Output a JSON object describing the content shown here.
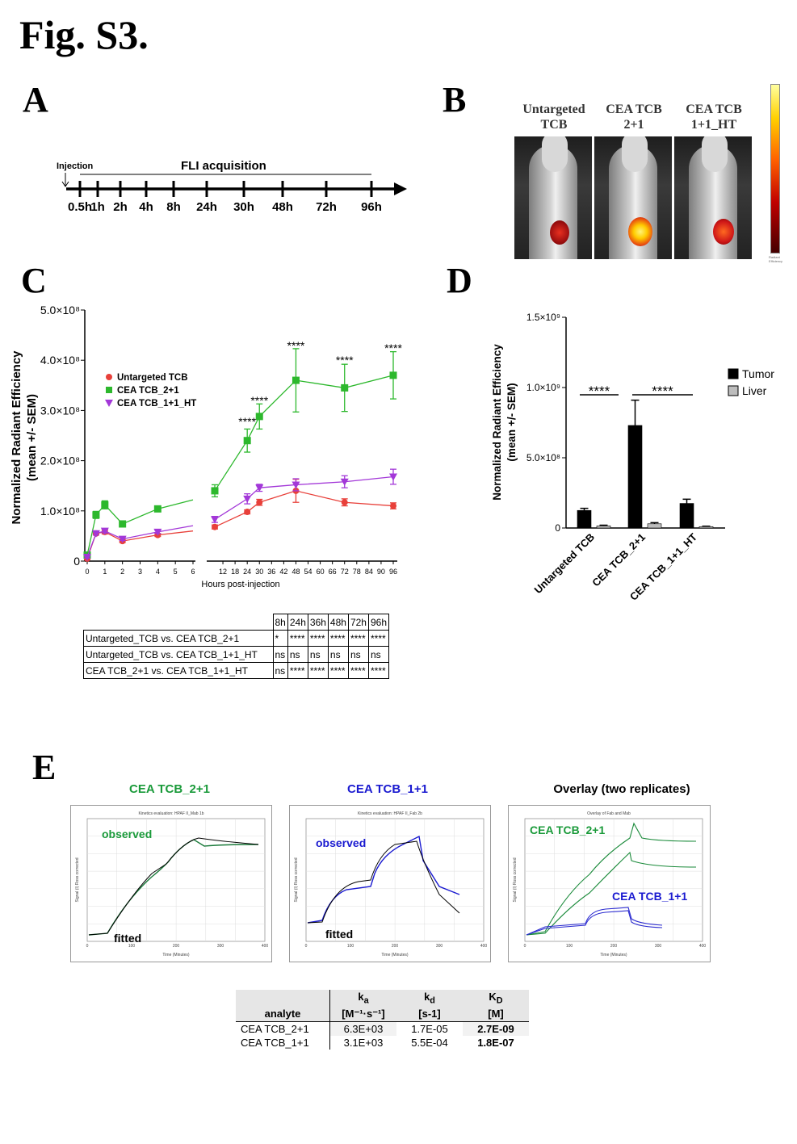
{
  "figure_title": "Fig. S3.",
  "panels": {
    "A": "A",
    "B": "B",
    "C": "C",
    "D": "D",
    "E": "E"
  },
  "panel_a": {
    "injection_label": "Injection",
    "acquisition_label": "FLI acquisition",
    "timepoints": [
      "0.5h",
      "1h",
      "2h",
      "4h",
      "8h",
      "24h",
      "30h",
      "48h",
      "72h",
      "96h"
    ]
  },
  "panel_b": {
    "mice": [
      {
        "label_line1": "Untargeted",
        "label_line2": "TCB"
      },
      {
        "label_line1": "CEA TCB",
        "label_line2": "2+1"
      },
      {
        "label_line1": "CEA TCB",
        "label_line2": "1+1_HT"
      }
    ],
    "colorbar_label": "Radiant Efficiency"
  },
  "chart_data": [
    {
      "type": "line",
      "panel": "C",
      "ylabel_line1": "Normalized Radiant Efficiency",
      "ylabel_line2": "(mean +/-  SEM)",
      "xlabel": "Hours post-injection",
      "y_ticks": [
        "0",
        "1.0×10⁸",
        "2.0×10⁸",
        "3.0×10⁸",
        "4.0×10⁸",
        "5.0×10⁸"
      ],
      "ylim": [
        0,
        500000000
      ],
      "x_ticks_left": [
        "0",
        "1",
        "2",
        "3",
        "4",
        "5",
        "6"
      ],
      "x_ticks_right": [
        "12",
        "18",
        "24",
        "30",
        "36",
        "42",
        "48",
        "54",
        "60",
        "66",
        "72",
        "78",
        "84",
        "90",
        "96"
      ],
      "series": [
        {
          "name": "Untargeted TCB",
          "color": "#e8403a",
          "marker": "circle",
          "x": [
            0,
            0.5,
            1,
            2,
            4,
            8,
            24,
            30,
            48,
            72,
            96
          ],
          "y": [
            5000000,
            55000000,
            58000000,
            40000000,
            52000000,
            68000000,
            98000000,
            117000000,
            140000000,
            117000000,
            110000000
          ],
          "err": [
            2000000,
            3000000,
            4000000,
            3000000,
            3000000,
            4000000,
            4000000,
            6000000,
            23000000,
            7000000,
            6000000
          ]
        },
        {
          "name": "CEA TCB_2+1",
          "color": "#2db82d",
          "marker": "square",
          "x": [
            0,
            0.5,
            1,
            2,
            4,
            8,
            24,
            30,
            48,
            72,
            96
          ],
          "y": [
            12000000,
            92000000,
            112000000,
            74000000,
            104000000,
            140000000,
            240000000,
            288000000,
            360000000,
            345000000,
            370000000
          ],
          "err": [
            3000000,
            7000000,
            8000000,
            4000000,
            5000000,
            12000000,
            23000000,
            25000000,
            63000000,
            47000000,
            47000000
          ]
        },
        {
          "name": "CEA TCB_1+1_HT",
          "color": "#a338d8",
          "marker": "triangle",
          "x": [
            0,
            0.5,
            1,
            2,
            4,
            8,
            24,
            30,
            48,
            72,
            96
          ],
          "y": [
            8000000,
            55000000,
            60000000,
            44000000,
            58000000,
            83000000,
            124000000,
            146000000,
            152000000,
            158000000,
            168000000
          ],
          "err": [
            2000000,
            3000000,
            4000000,
            3000000,
            3000000,
            6000000,
            10000000,
            7000000,
            12000000,
            12000000,
            15000000
          ]
        }
      ],
      "significance": [
        {
          "x": 24,
          "label": "****"
        },
        {
          "x": 30,
          "label": "****"
        },
        {
          "x": 48,
          "label": "****"
        },
        {
          "x": 72,
          "label": "****"
        },
        {
          "x": 96,
          "label": "****"
        }
      ]
    },
    {
      "type": "bar",
      "panel": "D",
      "ylabel_line1": "Normalized Radiant Efficiency",
      "ylabel_line2": "(mean +/-  SEM)",
      "y_ticks": [
        "0",
        "5.0×10⁸",
        "1.0×10⁹",
        "1.5×10⁹"
      ],
      "ylim": [
        0,
        1500000000
      ],
      "categories": [
        "Untargeted TCB",
        "CEA TCB_2+1",
        "CEA TCB_1+1_HT"
      ],
      "series": [
        {
          "name": "Tumor",
          "color": "#000000",
          "values": [
            125000000,
            730000000,
            175000000
          ],
          "err": [
            15000000,
            180000000,
            30000000
          ]
        },
        {
          "name": "Liver",
          "color": "#bdbdbd",
          "values": [
            15000000,
            30000000,
            10000000
          ],
          "err": [
            5000000,
            8000000,
            3000000
          ]
        }
      ],
      "significance": [
        {
          "label": "****"
        },
        {
          "label": "****"
        }
      ]
    }
  ],
  "stats_table": {
    "columns": [
      "",
      "8h",
      "24h",
      "36h",
      "48h",
      "72h",
      "96h"
    ],
    "rows": [
      [
        "Untargeted_TCB vs. CEA TCB_2+1",
        "*",
        "****",
        "****",
        "****",
        "****",
        "****"
      ],
      [
        "Untargeted_TCB vs. CEA TCB_1+1_HT",
        "ns",
        "ns",
        "ns",
        "ns",
        "ns",
        "ns"
      ],
      [
        "CEA TCB_2+1 vs. CEA TCB_1+1_HT",
        "ns",
        "****",
        "****",
        "****",
        "****",
        "****"
      ]
    ]
  },
  "panel_e": {
    "titles": [
      "CEA TCB_2+1",
      "CEA TCB_1+1",
      "Overlay (two replicates)"
    ],
    "plot_headers": [
      "Kinetics evaluation: HPAF II_Mab 1b",
      "Kinetics evaluation: HPAF II_Fab 2b",
      "Overlay of Fab and Mab"
    ],
    "observed_label": "observed",
    "fitted_label": "fitted",
    "overlay_label_1": "CEA TCB_2+1",
    "overlay_label_2": "CEA TCB_1+1",
    "xaxis_label": "Time (Minutes)",
    "yaxis_label": "Signal (I) Ross corrected",
    "kinetics_table": {
      "header": {
        "analyte": "analyte",
        "ka": "k",
        "ka_sub": "a",
        "ka_unit": "[M⁻¹·s⁻¹]",
        "kd": "k",
        "kd_sub": "d",
        "kd_unit": "[s-1]",
        "KD": "K",
        "KD_sub": "D",
        "KD_unit": "[M]"
      },
      "rows": [
        {
          "analyte": "CEA TCB_2+1",
          "ka": "6.3E+03",
          "kd": "1.7E-05",
          "KD": "2.7E-09"
        },
        {
          "analyte": "CEA TCB_1+1",
          "ka": "3.1E+03",
          "kd": "5.5E-04",
          "KD": "1.8E-07"
        }
      ]
    }
  }
}
